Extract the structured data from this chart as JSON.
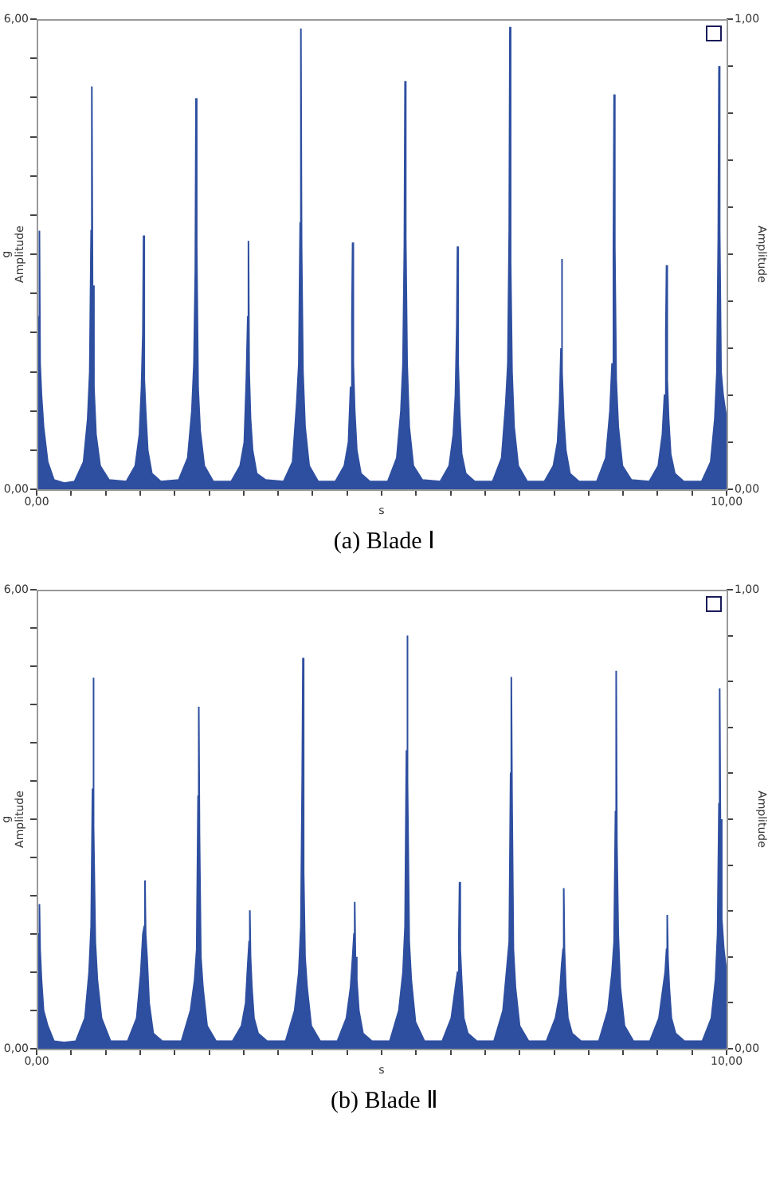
{
  "chart_data": [
    {
      "type": "area",
      "title": "(a)  Blade Ⅰ",
      "xlabel": "s",
      "ylabel": "g\nAmplitude",
      "y2label": "Amplitude",
      "xlim": [
        0,
        10
      ],
      "ylim": [
        0,
        6
      ],
      "y2lim": [
        0,
        1
      ],
      "xticks": [
        {
          "value": 0,
          "label": "0,00"
        },
        {
          "value": 0.5,
          "label": null
        },
        {
          "value": 1,
          "label": null
        },
        {
          "value": 1.5,
          "label": null
        },
        {
          "value": 2,
          "label": null
        },
        {
          "value": 2.5,
          "label": null
        },
        {
          "value": 3,
          "label": null
        },
        {
          "value": 3.5,
          "label": null
        },
        {
          "value": 4,
          "label": null
        },
        {
          "value": 4.5,
          "label": null
        },
        {
          "value": 5,
          "label": null
        },
        {
          "value": 5.5,
          "label": null
        },
        {
          "value": 6,
          "label": null
        },
        {
          "value": 6.5,
          "label": null
        },
        {
          "value": 7,
          "label": null
        },
        {
          "value": 7.5,
          "label": null
        },
        {
          "value": 8,
          "label": null
        },
        {
          "value": 8.5,
          "label": null
        },
        {
          "value": 9,
          "label": null
        },
        {
          "value": 9.5,
          "label": null
        },
        {
          "value": 10,
          "label": "10,00"
        }
      ],
      "yticks": [
        {
          "value": 0,
          "label": "0,00"
        },
        {
          "value": 0.5,
          "label": null
        },
        {
          "value": 1,
          "label": null
        },
        {
          "value": 1.5,
          "label": null
        },
        {
          "value": 2,
          "label": null
        },
        {
          "value": 2.5,
          "label": null
        },
        {
          "value": 3,
          "label": null
        },
        {
          "value": 3.5,
          "label": null
        },
        {
          "value": 4,
          "label": null
        },
        {
          "value": 4.5,
          "label": null
        },
        {
          "value": 5,
          "label": null
        },
        {
          "value": 5.5,
          "label": null
        },
        {
          "value": 6,
          "label": "6,00"
        }
      ],
      "y2ticks": [
        {
          "value": 0,
          "label": "0,00"
        },
        {
          "value": 0.1,
          "label": null
        },
        {
          "value": 0.2,
          "label": null
        },
        {
          "value": 0.3,
          "label": null
        },
        {
          "value": 0.4,
          "label": null
        },
        {
          "value": 0.5,
          "label": null
        },
        {
          "value": 0.6,
          "label": null
        },
        {
          "value": 0.7,
          "label": null
        },
        {
          "value": 0.8,
          "label": null
        },
        {
          "value": 0.9,
          "label": null
        },
        {
          "value": 1,
          "label": "1,00"
        }
      ],
      "grid": false,
      "legend": false,
      "series": [
        {
          "color": "#2e4fa0",
          "x": [
            0,
            0.03,
            0.04,
            0.05,
            0.07,
            0.1,
            0.16,
            0.25,
            0.4,
            0.55,
            0.68,
            0.74,
            0.77,
            0.79,
            0.8,
            0.81,
            0.83,
            0.86,
            0.92,
            1.05,
            1.3,
            1.43,
            1.49,
            1.52,
            1.54,
            1.55,
            1.56,
            1.58,
            1.61,
            1.67,
            1.8,
            2.06,
            2.19,
            2.25,
            2.28,
            2.3,
            2.31,
            2.32,
            2.34,
            2.37,
            2.43,
            2.56,
            2.82,
            2.95,
            3.01,
            3.04,
            3.06,
            3.07,
            3.08,
            3.1,
            3.13,
            3.19,
            3.32,
            3.58,
            3.71,
            3.77,
            3.8,
            3.82,
            3.83,
            3.84,
            3.86,
            3.89,
            3.95,
            4.08,
            4.33,
            4.46,
            4.52,
            4.55,
            4.57,
            4.58,
            4.59,
            4.61,
            4.64,
            4.7,
            4.83,
            5.09,
            5.22,
            5.28,
            5.31,
            5.33,
            5.34,
            5.35,
            5.37,
            5.4,
            5.46,
            5.59,
            5.85,
            5.98,
            6.04,
            6.07,
            6.09,
            6.1,
            6.11,
            6.13,
            6.16,
            6.22,
            6.35,
            6.61,
            6.74,
            6.8,
            6.83,
            6.85,
            6.86,
            6.87,
            6.89,
            6.92,
            6.98,
            7.11,
            7.36,
            7.49,
            7.55,
            7.58,
            7.6,
            7.61,
            7.62,
            7.64,
            7.67,
            7.73,
            7.86,
            8.12,
            8.25,
            8.31,
            8.34,
            8.36,
            8.37,
            8.38,
            8.4,
            8.43,
            8.49,
            8.62,
            8.88,
            9.01,
            9.07,
            9.1,
            9.12,
            9.13,
            9.14,
            9.16,
            9.19,
            9.25,
            9.38,
            9.64,
            9.77,
            9.83,
            9.86,
            9.88,
            9.89,
            9.9,
            9.92,
            9.95,
            10
          ],
          "values": [
            1.5,
            2.2,
            3.3,
            1.6,
            1.2,
            0.8,
            0.35,
            0.12,
            0.08,
            0.1,
            0.35,
            0.9,
            1.5,
            3.3,
            5.14,
            2.6,
            1.3,
            0.7,
            0.3,
            0.12,
            0.1,
            0.3,
            0.7,
            1.3,
            2.0,
            3.24,
            1.4,
            1.0,
            0.5,
            0.2,
            0.1,
            0.12,
            0.4,
            1.0,
            1.6,
            2.8,
            4.99,
            3.1,
            1.3,
            0.75,
            0.3,
            0.1,
            0.1,
            0.3,
            0.6,
            1.4,
            2.2,
            3.17,
            1.5,
            0.9,
            0.5,
            0.2,
            0.12,
            0.1,
            0.35,
            1.1,
            1.6,
            3.4,
            5.88,
            3.1,
            1.5,
            0.8,
            0.3,
            0.1,
            0.1,
            0.3,
            0.6,
            1.3,
            2.2,
            3.15,
            1.6,
            1.0,
            0.5,
            0.2,
            0.1,
            0.1,
            0.4,
            1.0,
            1.6,
            3.1,
            5.21,
            3.2,
            1.6,
            0.8,
            0.3,
            0.12,
            0.1,
            0.3,
            0.7,
            1.2,
            2.1,
            3.1,
            1.6,
            1.0,
            0.45,
            0.2,
            0.1,
            0.1,
            0.4,
            1.1,
            1.6,
            3.3,
            5.9,
            2.9,
            1.5,
            0.8,
            0.3,
            0.1,
            0.1,
            0.3,
            0.6,
            1.1,
            1.8,
            2.94,
            1.5,
            0.9,
            0.5,
            0.2,
            0.1,
            0.1,
            0.4,
            1.0,
            1.6,
            3.1,
            5.04,
            3.1,
            1.4,
            0.8,
            0.3,
            0.12,
            0.1,
            0.3,
            0.7,
            1.2,
            2.0,
            2.86,
            1.4,
            0.9,
            0.45,
            0.2,
            0.1,
            0.1,
            0.35,
            0.9,
            1.5,
            3.2,
            5.4,
            3.3,
            1.5,
            1.2,
            0.9
          ]
        }
      ]
    },
    {
      "type": "area",
      "title": "(b)  Blade Ⅱ",
      "xlabel": "s",
      "ylabel": "g\nAmplitude",
      "y2label": "Amplitude",
      "xlim": [
        0,
        10
      ],
      "ylim": [
        0,
        6
      ],
      "y2lim": [
        0,
        1
      ],
      "xticks": [
        {
          "value": 0,
          "label": "0,00"
        },
        {
          "value": 0.5,
          "label": null
        },
        {
          "value": 1,
          "label": null
        },
        {
          "value": 1.5,
          "label": null
        },
        {
          "value": 2,
          "label": null
        },
        {
          "value": 2.5,
          "label": null
        },
        {
          "value": 3,
          "label": null
        },
        {
          "value": 3.5,
          "label": null
        },
        {
          "value": 4,
          "label": null
        },
        {
          "value": 4.5,
          "label": null
        },
        {
          "value": 5,
          "label": null
        },
        {
          "value": 5.5,
          "label": null
        },
        {
          "value": 6,
          "label": null
        },
        {
          "value": 6.5,
          "label": null
        },
        {
          "value": 7,
          "label": null
        },
        {
          "value": 7.5,
          "label": null
        },
        {
          "value": 8,
          "label": null
        },
        {
          "value": 8.5,
          "label": null
        },
        {
          "value": 9,
          "label": null
        },
        {
          "value": 9.5,
          "label": null
        },
        {
          "value": 10,
          "label": "10,00"
        }
      ],
      "yticks": [
        {
          "value": 0,
          "label": "0,00"
        },
        {
          "value": 0.5,
          "label": null
        },
        {
          "value": 1,
          "label": null
        },
        {
          "value": 1.5,
          "label": null
        },
        {
          "value": 2,
          "label": null
        },
        {
          "value": 2.5,
          "label": null
        },
        {
          "value": 3,
          "label": null
        },
        {
          "value": 3.5,
          "label": null
        },
        {
          "value": 4,
          "label": null
        },
        {
          "value": 4.5,
          "label": null
        },
        {
          "value": 5,
          "label": null
        },
        {
          "value": 5.5,
          "label": null
        },
        {
          "value": 6,
          "label": "6,00"
        }
      ],
      "y2ticks": [
        {
          "value": 0,
          "label": "0,00"
        },
        {
          "value": 0.1,
          "label": null
        },
        {
          "value": 0.2,
          "label": null
        },
        {
          "value": 0.3,
          "label": null
        },
        {
          "value": 0.4,
          "label": null
        },
        {
          "value": 0.5,
          "label": null
        },
        {
          "value": 0.6,
          "label": null
        },
        {
          "value": 0.7,
          "label": null
        },
        {
          "value": 0.8,
          "label": null
        },
        {
          "value": 0.9,
          "label": null
        },
        {
          "value": 1,
          "label": "1,00"
        }
      ],
      "grid": false,
      "legend": false,
      "series": [
        {
          "color": "#2e4fa0",
          "x": [
            0,
            0.03,
            0.04,
            0.05,
            0.07,
            0.1,
            0.16,
            0.25,
            0.4,
            0.57,
            0.7,
            0.76,
            0.79,
            0.81,
            0.82,
            0.83,
            0.85,
            0.88,
            0.94,
            1.07,
            1.32,
            1.45,
            1.51,
            1.54,
            1.56,
            1.57,
            1.58,
            1.6,
            1.63,
            1.69,
            1.82,
            2.1,
            2.23,
            2.29,
            2.32,
            2.34,
            2.35,
            2.36,
            2.38,
            2.41,
            2.47,
            2.6,
            2.84,
            2.97,
            3.03,
            3.06,
            3.08,
            3.09,
            3.1,
            3.12,
            3.15,
            3.21,
            3.34,
            3.61,
            3.74,
            3.8,
            3.83,
            3.85,
            3.86,
            3.87,
            3.89,
            3.92,
            3.98,
            4.11,
            4.36,
            4.49,
            4.55,
            4.58,
            4.6,
            4.61,
            4.62,
            4.64,
            4.67,
            4.73,
            4.86,
            5.12,
            5.25,
            5.31,
            5.34,
            5.36,
            5.37,
            5.38,
            5.4,
            5.43,
            5.49,
            5.62,
            5.88,
            6.01,
            6.07,
            6.1,
            6.12,
            6.13,
            6.14,
            6.16,
            6.19,
            6.25,
            6.38,
            6.63,
            6.76,
            6.82,
            6.85,
            6.87,
            6.88,
            6.89,
            6.91,
            6.94,
            7,
            7.13,
            7.39,
            7.52,
            7.58,
            7.61,
            7.63,
            7.64,
            7.65,
            7.67,
            7.7,
            7.76,
            7.89,
            8.15,
            8.28,
            8.34,
            8.37,
            8.39,
            8.4,
            8.41,
            8.43,
            8.46,
            8.52,
            8.65,
            8.89,
            9.02,
            9.08,
            9.11,
            9.13,
            9.14,
            9.15,
            9.17,
            9.2,
            9.26,
            9.39,
            9.65,
            9.78,
            9.84,
            9.87,
            9.89,
            9.9,
            9.91,
            9.93,
            9.96,
            10
          ],
          "values": [
            1.2,
            1.5,
            1.89,
            1.3,
            0.9,
            0.5,
            0.3,
            0.1,
            0.08,
            0.1,
            0.4,
            1.0,
            1.6,
            3.4,
            4.85,
            2.9,
            1.4,
            0.9,
            0.4,
            0.1,
            0.1,
            0.4,
            1.0,
            1.5,
            1.6,
            2.2,
            1.5,
            1.2,
            0.6,
            0.2,
            0.1,
            0.1,
            0.5,
            0.9,
            1.3,
            3.3,
            4.47,
            2.8,
            1.2,
            0.8,
            0.3,
            0.1,
            0.1,
            0.3,
            0.6,
            1.1,
            1.4,
            1.81,
            1.2,
            0.8,
            0.4,
            0.2,
            0.1,
            0.1,
            0.5,
            1.0,
            1.6,
            3.6,
            5.11,
            2.3,
            1.2,
            0.8,
            0.3,
            0.1,
            0.1,
            0.4,
            0.8,
            1.2,
            1.5,
            1.92,
            1.2,
            0.9,
            0.5,
            0.2,
            0.1,
            0.1,
            0.5,
            1.0,
            1.6,
            3.9,
            5.4,
            3.5,
            1.4,
            0.9,
            0.35,
            0.1,
            0.1,
            0.4,
            0.8,
            1.0,
            1.5,
            2.18,
            1.3,
            0.9,
            0.4,
            0.2,
            0.1,
            0.1,
            0.5,
            1.1,
            1.4,
            3.6,
            4.86,
            3.3,
            1.3,
            0.8,
            0.3,
            0.1,
            0.1,
            0.4,
            0.7,
            1.1,
            1.3,
            2.1,
            1.3,
            0.8,
            0.4,
            0.2,
            0.1,
            0.1,
            0.5,
            1.0,
            1.4,
            3.1,
            4.94,
            2.7,
            1.5,
            0.8,
            0.3,
            0.1,
            0.1,
            0.4,
            0.8,
            1.0,
            1.3,
            1.75,
            1.2,
            0.8,
            0.4,
            0.2,
            0.1,
            0.1,
            0.4,
            0.9,
            1.5,
            3.2,
            4.71,
            3.0,
            1.7,
            1.3,
            1.0
          ]
        }
      ]
    }
  ]
}
